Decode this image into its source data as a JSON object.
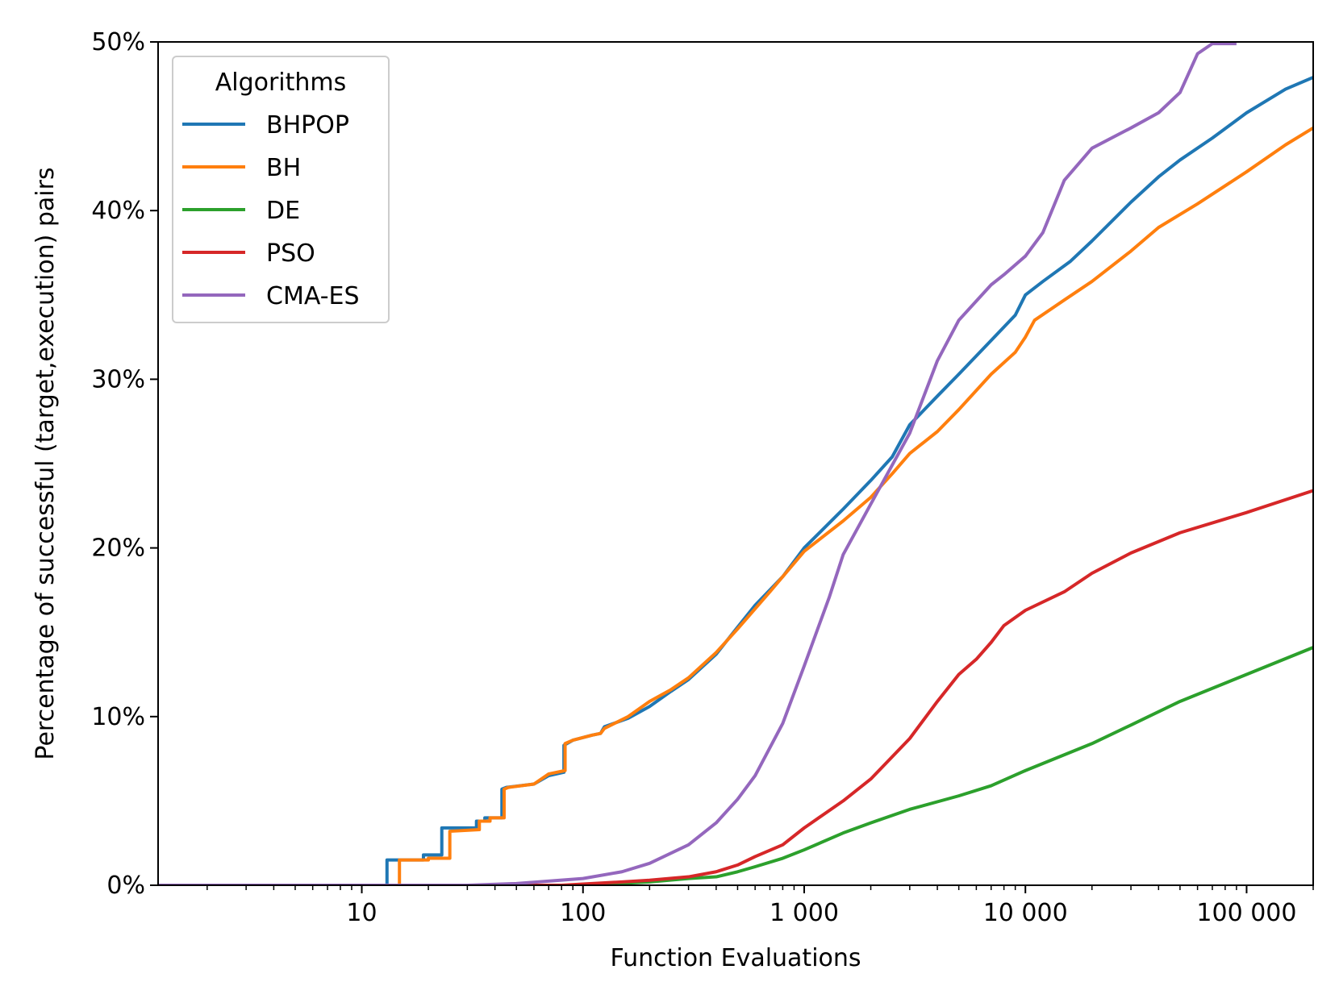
{
  "chart_data": {
    "type": "line",
    "title": "",
    "xlabel": "Function Evaluations",
    "ylabel": "Percentage of successful (target,execution) pairs",
    "xscale": "log",
    "xlim": [
      1.2,
      200000
    ],
    "ylim": [
      0,
      50
    ],
    "grid": false,
    "legend": {
      "title": "Algorithms",
      "placement": "top-left"
    },
    "x_ticks": [
      {
        "value": 10,
        "label": "10"
      },
      {
        "value": 100,
        "label": "100"
      },
      {
        "value": 1000,
        "label": "1 000"
      },
      {
        "value": 10000,
        "label": "10 000"
      },
      {
        "value": 100000,
        "label": "100 000"
      }
    ],
    "y_ticks": [
      {
        "value": 0,
        "label": "0%"
      },
      {
        "value": 10,
        "label": "10%"
      },
      {
        "value": 20,
        "label": "20%"
      },
      {
        "value": 30,
        "label": "30%"
      },
      {
        "value": 40,
        "label": "40%"
      },
      {
        "value": 50,
        "label": "50%"
      }
    ],
    "series": [
      {
        "name": "BHPOP",
        "color": "#1f77b4",
        "step": false,
        "points": [
          [
            1.2,
            0
          ],
          [
            13,
            0
          ],
          [
            13,
            1.5
          ],
          [
            19,
            1.5
          ],
          [
            19,
            1.8
          ],
          [
            23,
            1.8
          ],
          [
            23,
            3.4
          ],
          [
            33,
            3.4
          ],
          [
            33,
            3.8
          ],
          [
            36,
            3.8
          ],
          [
            36,
            4.0
          ],
          [
            43,
            4.0
          ],
          [
            43,
            5.7
          ],
          [
            45,
            5.8
          ],
          [
            60,
            6.0
          ],
          [
            70,
            6.5
          ],
          [
            82,
            6.7
          ],
          [
            82,
            8.3
          ],
          [
            90,
            8.6
          ],
          [
            110,
            8.9
          ],
          [
            120,
            9.0
          ],
          [
            125,
            9.4
          ],
          [
            160,
            9.9
          ],
          [
            200,
            10.6
          ],
          [
            250,
            11.5
          ],
          [
            300,
            12.2
          ],
          [
            400,
            13.7
          ],
          [
            500,
            15.3
          ],
          [
            600,
            16.6
          ],
          [
            800,
            18.3
          ],
          [
            1000,
            20.0
          ],
          [
            1500,
            22.3
          ],
          [
            2000,
            24.0
          ],
          [
            2500,
            25.4
          ],
          [
            3000,
            27.3
          ],
          [
            4000,
            29.0
          ],
          [
            5000,
            30.3
          ],
          [
            7000,
            32.3
          ],
          [
            9000,
            33.8
          ],
          [
            10000,
            35.0
          ],
          [
            12000,
            35.8
          ],
          [
            16000,
            37.0
          ],
          [
            20000,
            38.2
          ],
          [
            30000,
            40.5
          ],
          [
            40000,
            42.0
          ],
          [
            50000,
            43.0
          ],
          [
            70000,
            44.3
          ],
          [
            100000,
            45.8
          ],
          [
            150000,
            47.2
          ],
          [
            200000,
            47.9
          ]
        ]
      },
      {
        "name": "BH",
        "color": "#ff7f0e",
        "step": false,
        "points": [
          [
            1.2,
            0
          ],
          [
            14.8,
            0
          ],
          [
            14.8,
            1.5
          ],
          [
            20,
            1.5
          ],
          [
            20,
            1.6
          ],
          [
            25,
            1.6
          ],
          [
            25,
            3.2
          ],
          [
            34,
            3.3
          ],
          [
            34,
            3.8
          ],
          [
            38,
            3.8
          ],
          [
            38,
            4.0
          ],
          [
            44,
            4.0
          ],
          [
            44,
            5.7
          ],
          [
            46,
            5.8
          ],
          [
            60,
            6.0
          ],
          [
            70,
            6.6
          ],
          [
            83,
            6.8
          ],
          [
            83,
            8.4
          ],
          [
            90,
            8.6
          ],
          [
            110,
            8.9
          ],
          [
            120,
            9.0
          ],
          [
            125,
            9.3
          ],
          [
            160,
            10.0
          ],
          [
            200,
            10.9
          ],
          [
            250,
            11.6
          ],
          [
            300,
            12.3
          ],
          [
            400,
            13.8
          ],
          [
            500,
            15.2
          ],
          [
            700,
            17.4
          ],
          [
            1000,
            19.8
          ],
          [
            1500,
            21.6
          ],
          [
            2000,
            23.0
          ],
          [
            2500,
            24.4
          ],
          [
            3000,
            25.6
          ],
          [
            4000,
            26.9
          ],
          [
            5000,
            28.2
          ],
          [
            7000,
            30.3
          ],
          [
            9000,
            31.6
          ],
          [
            10000,
            32.5
          ],
          [
            11000,
            33.5
          ],
          [
            15000,
            34.7
          ],
          [
            20000,
            35.8
          ],
          [
            30000,
            37.6
          ],
          [
            40000,
            39.0
          ],
          [
            60000,
            40.4
          ],
          [
            100000,
            42.3
          ],
          [
            150000,
            43.9
          ],
          [
            200000,
            44.9
          ]
        ]
      },
      {
        "name": "DE",
        "color": "#2ca02c",
        "step": false,
        "points": [
          [
            1.2,
            0
          ],
          [
            100,
            0
          ],
          [
            200,
            0.2
          ],
          [
            300,
            0.4
          ],
          [
            400,
            0.5
          ],
          [
            500,
            0.8
          ],
          [
            600,
            1.1
          ],
          [
            800,
            1.6
          ],
          [
            1000,
            2.1
          ],
          [
            1500,
            3.1
          ],
          [
            2000,
            3.7
          ],
          [
            3000,
            4.5
          ],
          [
            5000,
            5.3
          ],
          [
            7000,
            5.9
          ],
          [
            10000,
            6.8
          ],
          [
            20000,
            8.4
          ],
          [
            30000,
            9.5
          ],
          [
            50000,
            10.9
          ],
          [
            100000,
            12.5
          ],
          [
            200000,
            14.1
          ]
        ]
      },
      {
        "name": "PSO",
        "color": "#d62728",
        "step": false,
        "points": [
          [
            1.2,
            0
          ],
          [
            80,
            0
          ],
          [
            150,
            0.2
          ],
          [
            200,
            0.3
          ],
          [
            300,
            0.5
          ],
          [
            400,
            0.8
          ],
          [
            500,
            1.2
          ],
          [
            600,
            1.7
          ],
          [
            800,
            2.4
          ],
          [
            1000,
            3.4
          ],
          [
            1500,
            5.0
          ],
          [
            2000,
            6.3
          ],
          [
            3000,
            8.7
          ],
          [
            4000,
            10.9
          ],
          [
            5000,
            12.5
          ],
          [
            6000,
            13.4
          ],
          [
            7000,
            14.4
          ],
          [
            8000,
            15.4
          ],
          [
            10000,
            16.3
          ],
          [
            15000,
            17.4
          ],
          [
            20000,
            18.5
          ],
          [
            30000,
            19.7
          ],
          [
            50000,
            20.9
          ],
          [
            100000,
            22.1
          ],
          [
            200000,
            23.4
          ]
        ]
      },
      {
        "name": "CMA-ES",
        "color": "#9467bd",
        "step": false,
        "points": [
          [
            1.2,
            0
          ],
          [
            30,
            0
          ],
          [
            50,
            0.1
          ],
          [
            100,
            0.4
          ],
          [
            150,
            0.8
          ],
          [
            200,
            1.3
          ],
          [
            300,
            2.4
          ],
          [
            400,
            3.7
          ],
          [
            500,
            5.1
          ],
          [
            600,
            6.5
          ],
          [
            800,
            9.6
          ],
          [
            1000,
            13.0
          ],
          [
            1300,
            17.1
          ],
          [
            1500,
            19.6
          ],
          [
            2000,
            22.6
          ],
          [
            3000,
            26.8
          ],
          [
            4000,
            31.1
          ],
          [
            5000,
            33.5
          ],
          [
            7000,
            35.6
          ],
          [
            8000,
            36.2
          ],
          [
            10000,
            37.3
          ],
          [
            12000,
            38.7
          ],
          [
            15000,
            41.8
          ],
          [
            20000,
            43.7
          ],
          [
            30000,
            44.9
          ],
          [
            40000,
            45.8
          ],
          [
            50000,
            47.0
          ],
          [
            60000,
            49.3
          ],
          [
            70000,
            49.9
          ],
          [
            90000,
            49.9
          ]
        ]
      }
    ]
  }
}
